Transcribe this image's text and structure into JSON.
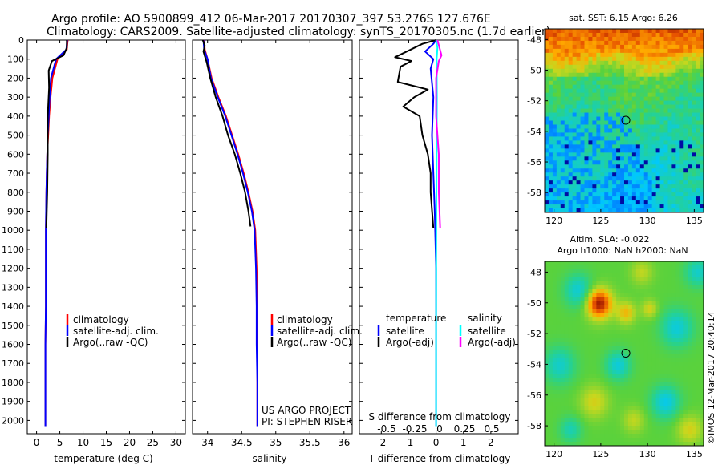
{
  "header": {
    "line1": "Argo profile: AO 5900899_412 06-Mar-2017 20170307_397 53.276S 127.676E",
    "line2": "Climatology: CARS2009. Satellite-adjusted climatology: synTS_20170305.nc (1.7d earlier)"
  },
  "colors": {
    "climatology": "#ff0000",
    "satellite": "#0000ff",
    "argo": "#000000",
    "sal_satellite": "#00ffff",
    "sal_argo": "#ff00ff"
  },
  "depth_axis": {
    "ticks": [
      0,
      100,
      200,
      300,
      400,
      500,
      600,
      700,
      800,
      900,
      1000,
      1100,
      1200,
      1300,
      1400,
      1500,
      1600,
      1700,
      1800,
      1900,
      2000
    ],
    "ylim": [
      0,
      2070
    ]
  },
  "temp_panel": {
    "xlabel": "temperature (deg C)",
    "ticks": [
      0,
      5,
      10,
      15,
      20,
      25,
      30
    ],
    "xlim": [
      -2,
      32
    ],
    "legend": [
      "climatology",
      "satellite-adj. clim.",
      "Argo(..raw -QC)"
    ]
  },
  "sal_panel": {
    "xlabel": "salinity",
    "ticks": [
      34,
      34.5,
      35,
      35.5,
      36
    ],
    "tick_labels": [
      "34",
      "34.5",
      "35",
      "35.5",
      "36"
    ],
    "xlim": [
      33.78,
      36.12
    ],
    "legend": [
      "climatology",
      "satellite-adj. clim.",
      "Argo(..raw -QC)"
    ],
    "credit1": "US ARGO PROJECT",
    "credit2": "PI: STEPHEN RISER"
  },
  "diff_panel": {
    "xlabel": "T difference from climatology",
    "top_label": "S difference from climatology",
    "t_ticks": [
      -2,
      -1,
      0,
      1,
      2
    ],
    "t_xlim": [
      -2.8,
      3.0
    ],
    "s_tick_labels": [
      "-0.5",
      "-0.25",
      "0",
      "0.25",
      "0.5"
    ],
    "legend_temp_title": "temperature",
    "legend_sal_title": "salinity",
    "legend_sat": "satellite",
    "legend_argo": "Argo(-adj)"
  },
  "chart_data": [
    {
      "type": "line",
      "title": "",
      "xlabel": "temperature (deg C)",
      "ylabel": "",
      "xlim": [
        -2,
        32
      ],
      "ylim": [
        2070,
        0
      ],
      "series": [
        {
          "name": "climatology",
          "x": [
            6.7,
            6.5,
            4.5,
            3.4,
            3.0,
            2.7,
            2.5,
            2.3,
            2.2,
            2.1,
            2.0,
            2.0,
            2.0,
            1.9,
            1.9,
            1.9
          ],
          "y": [
            0,
            50,
            100,
            200,
            300,
            400,
            500,
            600,
            700,
            800,
            1000,
            1200,
            1400,
            1600,
            1800,
            2030
          ]
        },
        {
          "name": "satellite-adj. clim.",
          "x": [
            6.6,
            6.4,
            4.2,
            3.1,
            2.8,
            2.6,
            2.4,
            2.3,
            2.2,
            2.1,
            2.0,
            2.0,
            2.0,
            1.9,
            1.9,
            1.9
          ],
          "y": [
            0,
            50,
            100,
            200,
            300,
            400,
            500,
            600,
            700,
            800,
            1000,
            1200,
            1400,
            1600,
            1800,
            2030
          ]
        },
        {
          "name": "Argo(..raw -QC)",
          "x": [
            6.5,
            6.5,
            5.8,
            3.3,
            2.6,
            2.7,
            2.4,
            2.4,
            2.3,
            2.2,
            2.1
          ],
          "y": [
            0,
            40,
            80,
            110,
            160,
            250,
            400,
            600,
            800,
            900,
            990
          ]
        }
      ]
    },
    {
      "type": "line",
      "title": "",
      "xlabel": "salinity",
      "ylabel": "",
      "xlim": [
        33.78,
        36.12
      ],
      "ylim": [
        2070,
        0
      ],
      "series": [
        {
          "name": "climatology",
          "x": [
            33.95,
            33.96,
            34.0,
            34.06,
            34.16,
            34.27,
            34.36,
            34.45,
            34.53,
            34.6,
            34.66,
            34.7,
            34.72,
            34.73,
            34.73,
            34.73,
            34.73
          ],
          "y": [
            0,
            50,
            100,
            200,
            300,
            400,
            500,
            600,
            700,
            800,
            900,
            1000,
            1200,
            1400,
            1600,
            1800,
            2030
          ]
        },
        {
          "name": "satellite-adj. clim.",
          "x": [
            33.94,
            33.95,
            34.0,
            34.05,
            34.15,
            34.26,
            34.35,
            34.44,
            34.52,
            34.59,
            34.65,
            34.69,
            34.71,
            34.72,
            34.72,
            34.73,
            34.73
          ],
          "y": [
            0,
            50,
            100,
            200,
            300,
            400,
            500,
            600,
            700,
            800,
            900,
            1000,
            1200,
            1400,
            1600,
            1800,
            2030
          ]
        },
        {
          "name": "Argo(..raw -QC)",
          "x": [
            33.93,
            33.96,
            33.94,
            33.99,
            34.04,
            34.12,
            34.22,
            34.3,
            34.4,
            34.48,
            34.55,
            34.6,
            34.63
          ],
          "y": [
            0,
            30,
            60,
            120,
            200,
            300,
            400,
            500,
            600,
            700,
            800,
            900,
            980
          ]
        }
      ]
    },
    {
      "type": "line",
      "title": "",
      "xlabel": "T difference from climatology",
      "ylabel": "",
      "xlim": [
        -2.8,
        3.0
      ],
      "ylim": [
        2070,
        0
      ],
      "series": [
        {
          "name": "temperature satellite",
          "x": [
            0.0,
            -0.1,
            -0.4,
            -0.1,
            -0.2,
            -0.1,
            -0.15,
            -0.1,
            -0.05,
            0.0,
            0.0
          ],
          "y": [
            0,
            20,
            60,
            100,
            150,
            300,
            500,
            700,
            900,
            1200,
            2030
          ]
        },
        {
          "name": "temperature Argo(-adj)",
          "x": [
            0.0,
            -0.5,
            -1.5,
            -0.9,
            -1.3,
            -1.4,
            -0.3,
            -0.8,
            -1.2,
            -0.6,
            -0.5,
            -0.3,
            -0.2,
            -0.2,
            -0.1
          ],
          "y": [
            0,
            20,
            90,
            110,
            140,
            220,
            260,
            300,
            350,
            400,
            500,
            600,
            700,
            800,
            990
          ]
        },
        {
          "name": "salinity satellite",
          "x": [
            0.0,
            0.05,
            0.02,
            0.03,
            0.02,
            0.01,
            0.0,
            0.0
          ],
          "y": [
            0,
            40,
            100,
            300,
            600,
            900,
            1500,
            2030
          ]
        },
        {
          "name": "salinity Argo(-adj)",
          "x": [
            0.05,
            0.2,
            0.1,
            0.0,
            0.0,
            0.1,
            0.1,
            0.15
          ],
          "y": [
            0,
            80,
            110,
            200,
            400,
            600,
            800,
            990
          ]
        }
      ]
    },
    {
      "type": "heatmap",
      "title": "sat. SST: 6.15  Argo: 6.26",
      "xlabel": "",
      "ylabel": "",
      "xlim": [
        119,
        136
      ],
      "ylim": [
        -59.3,
        -47.3
      ],
      "x_ticks": [
        120,
        125,
        130,
        135
      ],
      "y_ticks": [
        -48,
        -50,
        -52,
        -54,
        -56,
        -58
      ],
      "marker": {
        "lon": 127.676,
        "lat": -53.276
      }
    },
    {
      "type": "heatmap",
      "title": "Altim. SLA: -0.022",
      "subtitle": "Argo h1000: NaN h2000: NaN",
      "xlabel": "",
      "ylabel": "",
      "xlim": [
        119,
        136
      ],
      "ylim": [
        -59.3,
        -47.3
      ],
      "x_ticks": [
        120,
        125,
        130,
        135
      ],
      "y_ticks": [
        -48,
        -50,
        -52,
        -54,
        -56,
        -58
      ],
      "marker": {
        "lon": 127.676,
        "lat": -53.276
      },
      "side_label": "©IMOS 12-Mar-2017 20:40:14"
    }
  ]
}
